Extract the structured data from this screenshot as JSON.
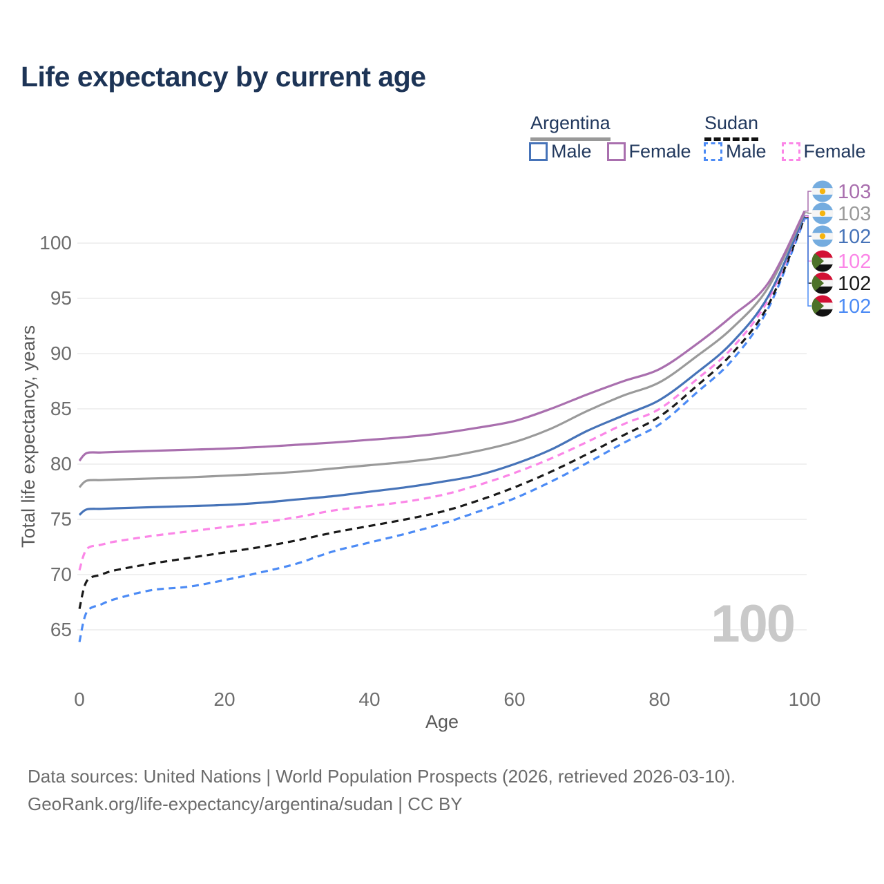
{
  "title": "Life expectancy by current age",
  "watermark": "100",
  "legend": {
    "argentina": {
      "name": "Argentina",
      "male": "Male",
      "female": "Female",
      "accent": "#999999"
    },
    "sudan": {
      "name": "Sudan",
      "male": "Male",
      "female": "Female",
      "accent": "#111111"
    }
  },
  "footer": {
    "line1": "Data sources: United Nations | World Population Prospects (2026, retrieved 2026-03-10).",
    "line2": "GeoRank.org/life-expectancy/argentina/sudan | CC BY"
  },
  "colors": {
    "title_navy": "#1d3456",
    "legend_navy": "#22395e",
    "axis_tick_gray": "#6e6e6e",
    "axis_title_gray": "#595959",
    "grid_gray": "#e8e8e8",
    "watermark_gray": "#c9c9c9",
    "footer_gray": "#6b6b6b"
  },
  "chart_data": {
    "type": "line",
    "title": "Life expectancy by current age",
    "xlabel": "Age",
    "ylabel": "Total life expectancy, years",
    "xlim": [
      0,
      100
    ],
    "ylim": [
      63,
      103.5
    ],
    "x_ticks": [
      0,
      20,
      40,
      60,
      80,
      100
    ],
    "y_ticks": [
      65,
      70,
      75,
      80,
      85,
      90,
      95,
      100
    ],
    "grid": true,
    "legend_position": "top-right",
    "series": [
      {
        "name": "Argentina Female",
        "country": "Argentina",
        "sex": "Female",
        "color": "#a96fae",
        "style": "solid",
        "end_label": "103",
        "points": [
          [
            0,
            80.3
          ],
          [
            1,
            81.0
          ],
          [
            3,
            81.05
          ],
          [
            5,
            81.1
          ],
          [
            10,
            81.2
          ],
          [
            15,
            81.3
          ],
          [
            20,
            81.4
          ],
          [
            25,
            81.55
          ],
          [
            30,
            81.75
          ],
          [
            35,
            81.95
          ],
          [
            40,
            82.2
          ],
          [
            45,
            82.45
          ],
          [
            50,
            82.8
          ],
          [
            55,
            83.3
          ],
          [
            60,
            83.9
          ],
          [
            65,
            85.0
          ],
          [
            70,
            86.3
          ],
          [
            75,
            87.5
          ],
          [
            80,
            88.6
          ],
          [
            85,
            90.8
          ],
          [
            90,
            93.4
          ],
          [
            95,
            96.4
          ],
          [
            100,
            102.9
          ]
        ]
      },
      {
        "name": "Argentina Both sexes",
        "country": "Argentina",
        "sex": "Both",
        "color": "#9a9a9a",
        "style": "solid",
        "end_label": "103",
        "points": [
          [
            0,
            77.9
          ],
          [
            1,
            78.5
          ],
          [
            3,
            78.55
          ],
          [
            5,
            78.6
          ],
          [
            10,
            78.7
          ],
          [
            15,
            78.8
          ],
          [
            20,
            78.95
          ],
          [
            25,
            79.1
          ],
          [
            30,
            79.3
          ],
          [
            35,
            79.6
          ],
          [
            40,
            79.9
          ],
          [
            45,
            80.2
          ],
          [
            50,
            80.6
          ],
          [
            55,
            81.2
          ],
          [
            60,
            82.0
          ],
          [
            65,
            83.2
          ],
          [
            70,
            84.8
          ],
          [
            75,
            86.2
          ],
          [
            80,
            87.4
          ],
          [
            85,
            89.7
          ],
          [
            90,
            92.3
          ],
          [
            95,
            96.0
          ],
          [
            100,
            102.75
          ]
        ]
      },
      {
        "name": "Argentina Male",
        "country": "Argentina",
        "sex": "Male",
        "color": "#4673b8",
        "style": "solid",
        "end_label": "102",
        "points": [
          [
            0,
            75.4
          ],
          [
            1,
            75.9
          ],
          [
            3,
            75.95
          ],
          [
            5,
            76.0
          ],
          [
            10,
            76.1
          ],
          [
            15,
            76.2
          ],
          [
            20,
            76.3
          ],
          [
            25,
            76.5
          ],
          [
            30,
            76.8
          ],
          [
            35,
            77.1
          ],
          [
            40,
            77.5
          ],
          [
            45,
            77.9
          ],
          [
            50,
            78.4
          ],
          [
            55,
            79.0
          ],
          [
            60,
            80.0
          ],
          [
            65,
            81.3
          ],
          [
            70,
            83.0
          ],
          [
            75,
            84.4
          ],
          [
            80,
            85.8
          ],
          [
            85,
            88.2
          ],
          [
            90,
            91.0
          ],
          [
            95,
            95.2
          ],
          [
            100,
            102.5
          ]
        ]
      },
      {
        "name": "Sudan Female",
        "country": "Sudan",
        "sex": "Female",
        "color": "#fb86e7",
        "style": "dashed",
        "end_label": "102",
        "points": [
          [
            0,
            70.4
          ],
          [
            1,
            72.3
          ],
          [
            3,
            72.7
          ],
          [
            5,
            73.0
          ],
          [
            10,
            73.5
          ],
          [
            15,
            73.9
          ],
          [
            20,
            74.3
          ],
          [
            25,
            74.7
          ],
          [
            30,
            75.2
          ],
          [
            35,
            75.8
          ],
          [
            40,
            76.2
          ],
          [
            45,
            76.6
          ],
          [
            50,
            77.2
          ],
          [
            55,
            78.1
          ],
          [
            60,
            79.2
          ],
          [
            65,
            80.5
          ],
          [
            70,
            82.0
          ],
          [
            75,
            83.6
          ],
          [
            80,
            85.0
          ],
          [
            85,
            87.6
          ],
          [
            90,
            90.5
          ],
          [
            95,
            94.9
          ],
          [
            100,
            102.45
          ]
        ]
      },
      {
        "name": "Sudan Both sexes",
        "country": "Sudan",
        "sex": "Both",
        "color": "#1a1a1a",
        "style": "dashed",
        "end_label": "102",
        "points": [
          [
            0,
            66.9
          ],
          [
            1,
            69.4
          ],
          [
            3,
            70.0
          ],
          [
            5,
            70.4
          ],
          [
            10,
            71.0
          ],
          [
            15,
            71.5
          ],
          [
            20,
            72.0
          ],
          [
            25,
            72.5
          ],
          [
            30,
            73.1
          ],
          [
            35,
            73.8
          ],
          [
            40,
            74.4
          ],
          [
            45,
            75.0
          ],
          [
            50,
            75.7
          ],
          [
            55,
            76.7
          ],
          [
            60,
            77.9
          ],
          [
            65,
            79.3
          ],
          [
            70,
            80.9
          ],
          [
            75,
            82.6
          ],
          [
            80,
            84.3
          ],
          [
            85,
            87.0
          ],
          [
            90,
            90.0
          ],
          [
            95,
            94.4
          ],
          [
            100,
            102.3
          ]
        ]
      },
      {
        "name": "Sudan Male",
        "country": "Sudan",
        "sex": "Male",
        "color": "#4c8bf5",
        "style": "dashed",
        "end_label": "102",
        "points": [
          [
            0,
            63.9
          ],
          [
            1,
            66.6
          ],
          [
            3,
            67.3
          ],
          [
            5,
            67.8
          ],
          [
            10,
            68.6
          ],
          [
            15,
            68.9
          ],
          [
            20,
            69.5
          ],
          [
            25,
            70.2
          ],
          [
            30,
            71.0
          ],
          [
            35,
            72.1
          ],
          [
            40,
            72.9
          ],
          [
            45,
            73.7
          ],
          [
            50,
            74.6
          ],
          [
            55,
            75.7
          ],
          [
            60,
            76.9
          ],
          [
            65,
            78.4
          ],
          [
            70,
            80.1
          ],
          [
            75,
            81.9
          ],
          [
            80,
            83.6
          ],
          [
            85,
            86.4
          ],
          [
            90,
            89.4
          ],
          [
            95,
            94.1
          ],
          [
            100,
            102.2
          ]
        ]
      }
    ]
  }
}
